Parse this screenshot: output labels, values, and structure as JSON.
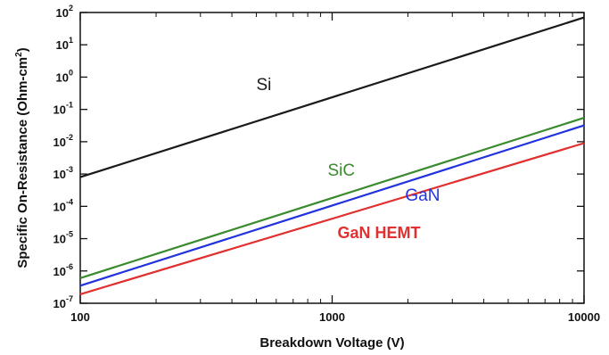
{
  "chart_data": {
    "type": "line",
    "xlabel": "Breakdown Voltage (V)",
    "ylabel": "Specific On-Resistance (Ohm-cm²)",
    "xscale": "log",
    "yscale": "log",
    "xlim": [
      100,
      10000
    ],
    "ylim": [
      1e-07,
      100
    ],
    "grid": false,
    "x_ticks": [
      {
        "value": 100,
        "label": "100"
      },
      {
        "value": 1000,
        "label": "1000"
      },
      {
        "value": 10000,
        "label": "10000"
      }
    ],
    "y_ticks": [
      {
        "value": 100,
        "base": "10",
        "exp": "2"
      },
      {
        "value": 10,
        "base": "10",
        "exp": "1"
      },
      {
        "value": 1,
        "base": "10",
        "exp": "0"
      },
      {
        "value": 0.1,
        "base": "10",
        "exp": "-1"
      },
      {
        "value": 0.01,
        "base": "10",
        "exp": "-2"
      },
      {
        "value": 0.001,
        "base": "10",
        "exp": "-3"
      },
      {
        "value": 0.0001,
        "base": "10",
        "exp": "-4"
      },
      {
        "value": 1e-05,
        "base": "10",
        "exp": "-5"
      },
      {
        "value": 1e-06,
        "base": "10",
        "exp": "-6"
      },
      {
        "value": 1e-07,
        "base": "10",
        "exp": "-7"
      }
    ],
    "series": [
      {
        "name": "Si",
        "color": "#1a1a1a",
        "x": [
          100,
          10000
        ],
        "y": [
          0.0008,
          70
        ],
        "label_at": [
          500,
          0.4
        ],
        "bold": false
      },
      {
        "name": "SiC",
        "color": "#3a8a2e",
        "x": [
          100,
          10000
        ],
        "y": [
          6e-07,
          0.055
        ],
        "label_at": [
          960,
          0.0009
        ],
        "bold": false
      },
      {
        "name": "GaN",
        "color": "#2233dd",
        "x": [
          100,
          10000
        ],
        "y": [
          3.5e-07,
          0.032
        ],
        "label_at": [
          1950,
          0.00015
        ],
        "bold": false
      },
      {
        "name": "GaN HEMT",
        "color": "#e03030",
        "x": [
          100,
          10000
        ],
        "y": [
          1.9e-07,
          0.009
        ],
        "label_at": [
          1050,
          1.05e-05
        ],
        "bold": true
      }
    ]
  }
}
